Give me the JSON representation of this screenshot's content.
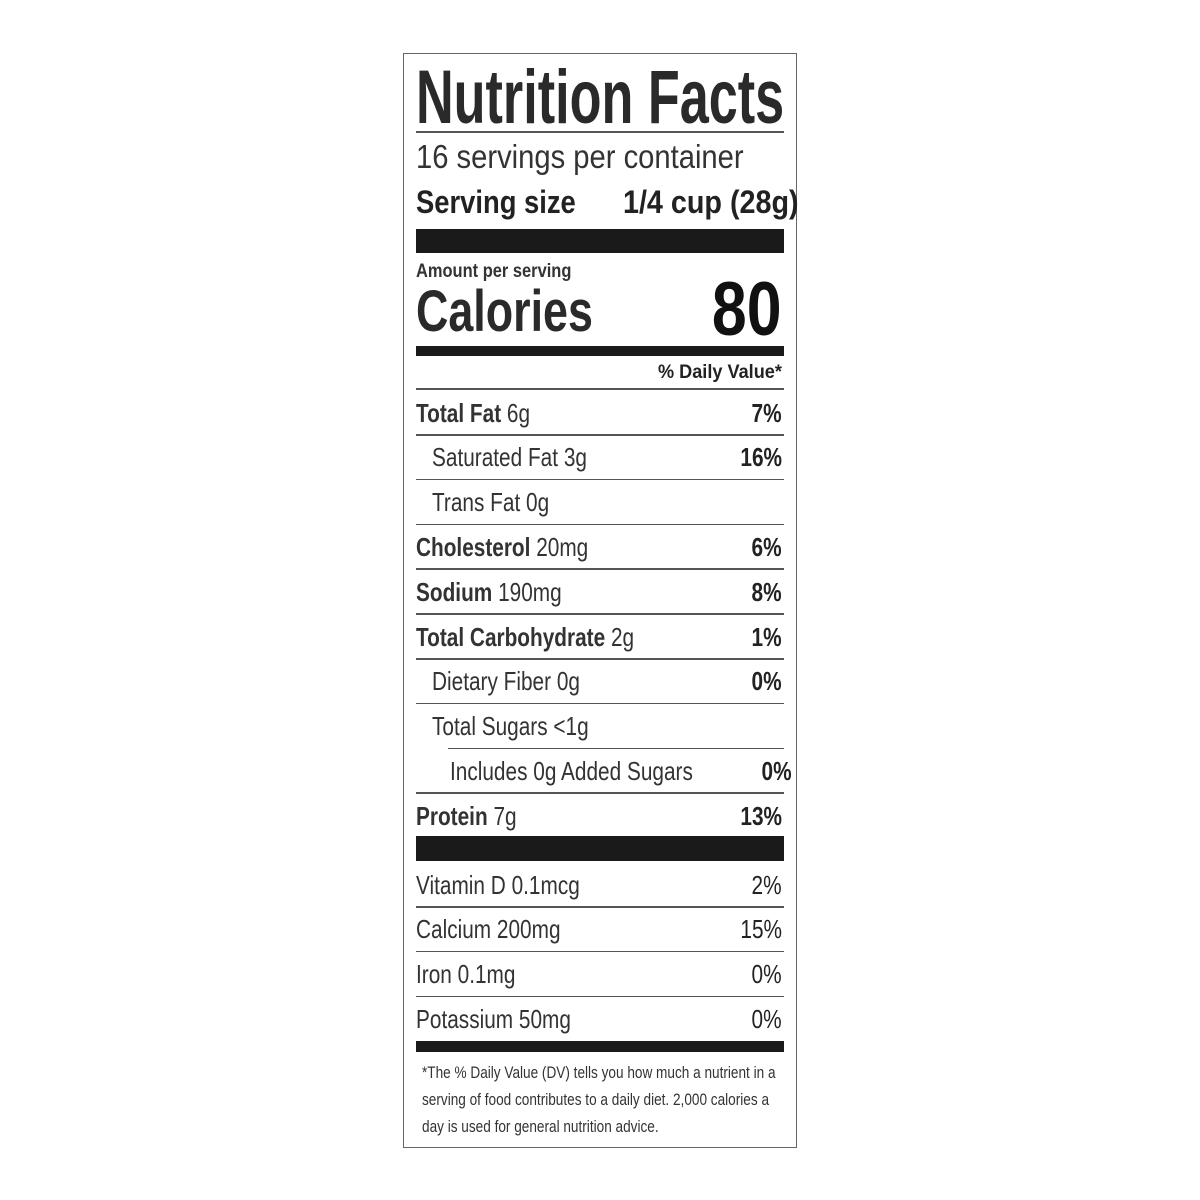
{
  "title": "Nutrition Facts",
  "servings_per_container": "16 servings per container",
  "serving_size": {
    "label": "Serving size",
    "value": "1/4 cup (28g)"
  },
  "amount_per_serving": "Amount per serving",
  "calories": {
    "label": "Calories",
    "value": "80"
  },
  "daily_value_header": "% Daily Value*",
  "nutrients": [
    {
      "name": "Total Fat",
      "amount": "6g",
      "dv": "7%"
    },
    {
      "name": "Saturated Fat",
      "amount": "3g",
      "dv": "16%"
    },
    {
      "name": "Trans Fat",
      "amount": "0g",
      "dv": ""
    },
    {
      "name": "Cholesterol",
      "amount": "20mg",
      "dv": "6%"
    },
    {
      "name": "Sodium",
      "amount": "190mg",
      "dv": "8%"
    },
    {
      "name": "Total Carbohydrate",
      "amount": "2g",
      "dv": "1%"
    },
    {
      "name": "Dietary Fiber",
      "amount": "0g",
      "dv": "0%"
    },
    {
      "name": "Total Sugars",
      "amount": "<1g",
      "dv": ""
    },
    {
      "name": "Includes 0g Added Sugars",
      "amount": "",
      "dv": "0%"
    },
    {
      "name": "Protein",
      "amount": "7g",
      "dv": "13%"
    }
  ],
  "vitamins": [
    {
      "name": "Vitamin D",
      "amount": "0.1mcg",
      "dv": "2%"
    },
    {
      "name": "Calcium",
      "amount": "200mg",
      "dv": "15%"
    },
    {
      "name": "Iron",
      "amount": "0.1mg",
      "dv": "0%"
    },
    {
      "name": "Potassium",
      "amount": "50mg",
      "dv": "0%"
    }
  ],
  "footnote": "*The % Daily Value (DV) tells you how much a nutrient in a serving of food contributes to a daily diet. 2,000 calories a day is used for general nutrition advice."
}
